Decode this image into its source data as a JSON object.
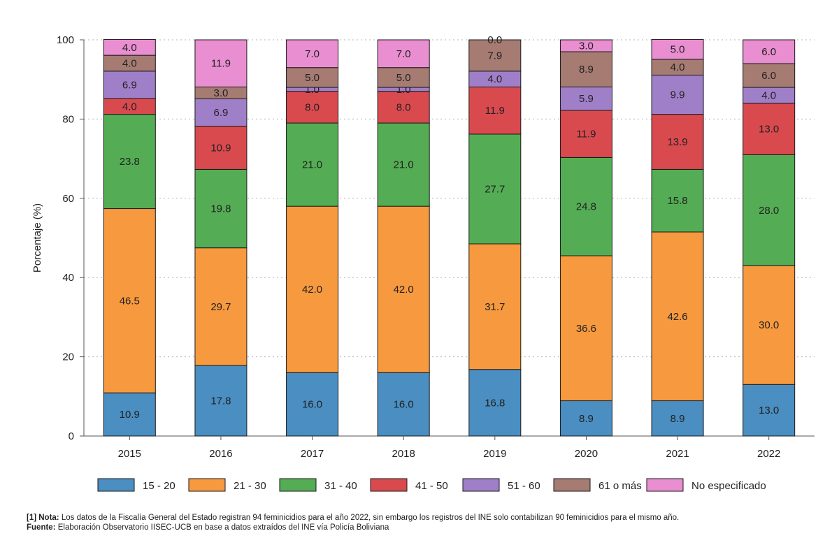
{
  "chart_data": {
    "type": "stacked-bar",
    "title": "",
    "xlabel": "",
    "ylabel": "Porcentaje (%)",
    "ylim": [
      0,
      100
    ],
    "yticks": [
      0,
      20,
      40,
      60,
      80,
      100
    ],
    "grid": "horizontal-dotted",
    "legend_position": "bottom",
    "categories": [
      "2015",
      "2016",
      "2017",
      "2018",
      "2019",
      "2020",
      "2021",
      "2022"
    ],
    "series": [
      {
        "name": "15 - 20",
        "color": "#4a8ec2",
        "values": [
          10.9,
          17.8,
          16.0,
          16.0,
          16.8,
          8.9,
          8.9,
          13.0
        ]
      },
      {
        "name": "21 - 30",
        "color": "#f7993e",
        "values": [
          46.5,
          29.7,
          42.0,
          42.0,
          31.7,
          36.6,
          42.6,
          30.0
        ]
      },
      {
        "name": "31 - 40",
        "color": "#54ad54",
        "values": [
          23.8,
          19.8,
          21.0,
          21.0,
          27.7,
          24.8,
          15.8,
          28.0
        ]
      },
      {
        "name": "41 - 50",
        "color": "#d94a4e",
        "values": [
          4.0,
          10.9,
          8.0,
          8.0,
          11.9,
          11.9,
          13.9,
          13.0
        ]
      },
      {
        "name": "51 - 60",
        "color": "#a07fc9",
        "values": [
          6.9,
          6.9,
          1.0,
          1.0,
          4.0,
          5.9,
          9.9,
          4.0
        ]
      },
      {
        "name": "61 o más",
        "color": "#a57b72",
        "values": [
          4.0,
          3.0,
          5.0,
          5.0,
          7.9,
          8.9,
          4.0,
          6.0
        ]
      },
      {
        "name": "No especificado",
        "color": "#e98ed0",
        "values": [
          4.0,
          11.9,
          7.0,
          7.0,
          0.0,
          3.0,
          5.0,
          6.0
        ]
      }
    ]
  },
  "note": {
    "label": "[1] Nota:",
    "text": " Los datos de la Fiscalía General del Estado registran 94 feminicidios para el año 2022, sin embargo los registros del INE solo contabilizan 90 feminicidios para el mismo año."
  },
  "source": {
    "label": "Fuente:",
    "text": " Elaboración Observatorio IISEC-UCB en base a datos  extraídos del INE vía Policía Boliviana"
  }
}
